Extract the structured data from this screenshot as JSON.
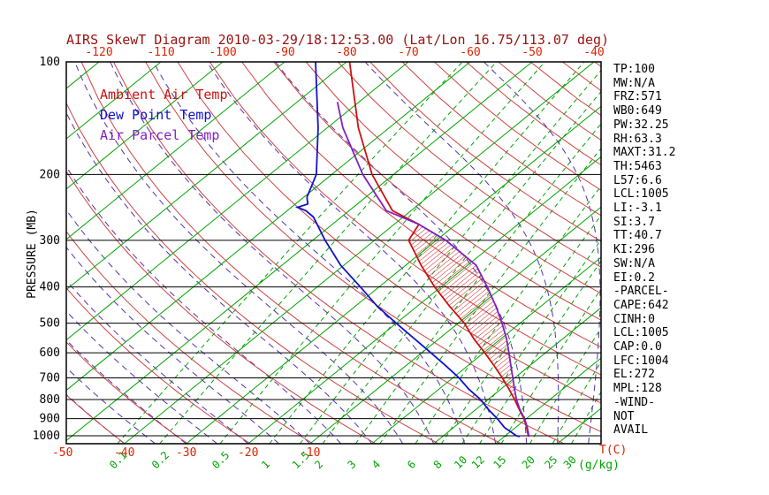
{
  "title": "AIRS SkewT Diagram 2010-03-29/18:12:53.00 (Lat/Lon 16.75/113.07 deg)",
  "legend": {
    "ambient": "Ambient Air Temp",
    "dew": "Dew Point Temp",
    "parcel": "Air Parcel Temp"
  },
  "axes": {
    "pressure_label": "PRESSURE (MB)",
    "temp_label": "T(C)",
    "mixing_label": "(g/kg)",
    "pressure_ticks": [
      100,
      200,
      300,
      400,
      500,
      600,
      700,
      800,
      900,
      1000
    ]
  },
  "stats_panel": [
    "TP:100",
    "MW:N/A",
    "FRZ:571",
    "WB0:649",
    "PW:32.25",
    "RH:63.3",
    "MAXT:31.2",
    "TH:5463",
    "L57:6.6",
    "LCL:1005",
    "LI:-3.1",
    "SI:3.7",
    "TT:40.7",
    "KI:296",
    "SW:N/A",
    "EI:0.2",
    "-PARCEL-",
    "CAPE:642",
    "CINH:0",
    "LCL:1005",
    "CAP:0.0",
    "LFC:1004",
    "EL:272",
    "MPL:128",
    "-WIND-",
    "NOT",
    "AVAIL"
  ],
  "colors": {
    "background": "#ffffff",
    "title": "#991111",
    "axis_red": "#dd2200",
    "axis_green": "#00a400",
    "isotherm": "#00a400",
    "mixing": "#00a400",
    "dry_adiabat": "#cc4444",
    "moist_adiabat": "#5533aa",
    "pressure_line": "#000000",
    "ambient": "#cc1111",
    "dew": "#1111cc",
    "parcel": "#8020c0",
    "hatch": "#cc2222",
    "text": "#000000"
  },
  "chart_data": {
    "type": "line",
    "title": "AIRS SkewT Diagram 2010-03-29/18:12:53.00 (Lat/Lon 16.75/113.07 deg)",
    "xlabel": "T(C)",
    "ylabel": "PRESSURE (MB)",
    "y_scale": "log",
    "ylim": [
      1050,
      100
    ],
    "x_top_labels_c": [
      -120,
      -110,
      -100,
      -90,
      -80,
      -70,
      -60,
      -50,
      -40
    ],
    "x_bottom_labels_c": [
      -50,
      -40,
      -30,
      -20,
      -10
    ],
    "mixing_ratio_lines_g_per_kg": [
      0.1,
      0.2,
      0.5,
      1,
      1.5,
      2,
      3,
      4,
      6,
      8,
      10,
      12,
      15,
      20,
      25,
      30
    ],
    "isotherms_c": {
      "min": -120,
      "max": 40,
      "step": 10
    },
    "dry_adiabats_theta_k": {
      "min": 220,
      "max": 460,
      "step": 10
    },
    "moist_adiabats_start_c": {
      "min": -40,
      "max": 40,
      "step": 5
    },
    "cape_hatch": "between parcel and ambient curves from 1005 mb up to EL 272 mb",
    "series": [
      {
        "key": "ambient",
        "name": "Ambient Air Temp",
        "color": "#cc1111",
        "points_p_t": [
          [
            1005,
            24.0
          ],
          [
            1000,
            23.7
          ],
          [
            950,
            21.8
          ],
          [
            900,
            19.6
          ],
          [
            850,
            17.0
          ],
          [
            800,
            14.3
          ],
          [
            750,
            11.3
          ],
          [
            700,
            8.0
          ],
          [
            650,
            4.3
          ],
          [
            600,
            0.2
          ],
          [
            550,
            -4.4
          ],
          [
            500,
            -9.0
          ],
          [
            450,
            -14.8
          ],
          [
            400,
            -21.0
          ],
          [
            350,
            -27.5
          ],
          [
            300,
            -34.5
          ],
          [
            272,
            -36.0
          ],
          [
            250,
            -43.0
          ],
          [
            200,
            -53.5
          ],
          [
            150,
            -65.0
          ],
          [
            100,
            -79.5
          ]
        ]
      },
      {
        "key": "dew",
        "name": "Dew Point Temp",
        "color": "#1111cc",
        "points_p_t": [
          [
            1005,
            22.5
          ],
          [
            1000,
            21.8
          ],
          [
            950,
            18.2
          ],
          [
            900,
            15.3
          ],
          [
            850,
            12.0
          ],
          [
            800,
            8.8
          ],
          [
            750,
            4.8
          ],
          [
            700,
            1.0
          ],
          [
            650,
            -3.5
          ],
          [
            600,
            -8.5
          ],
          [
            550,
            -14.0
          ],
          [
            500,
            -20.0
          ],
          [
            450,
            -26.5
          ],
          [
            400,
            -33.0
          ],
          [
            350,
            -40.5
          ],
          [
            300,
            -48.0
          ],
          [
            260,
            -54.5
          ],
          [
            250,
            -57.0
          ],
          [
            245,
            -59.0
          ],
          [
            240,
            -58.0
          ],
          [
            230,
            -59.5
          ],
          [
            200,
            -62.5
          ],
          [
            150,
            -71.5
          ],
          [
            100,
            -85.0
          ]
        ]
      },
      {
        "key": "parcel",
        "name": "Air Parcel Temp",
        "color": "#8020c0",
        "points_p_t": [
          [
            1005,
            24.0
          ],
          [
            1000,
            23.8
          ],
          [
            950,
            21.9
          ],
          [
            900,
            19.7
          ],
          [
            850,
            17.1
          ],
          [
            800,
            14.6
          ],
          [
            750,
            12.2
          ],
          [
            700,
            9.7
          ],
          [
            650,
            7.0
          ],
          [
            600,
            4.1
          ],
          [
            550,
            0.9
          ],
          [
            500,
            -2.9
          ],
          [
            450,
            -7.3
          ],
          [
            400,
            -12.5
          ],
          [
            350,
            -18.6
          ],
          [
            300,
            -28.5
          ],
          [
            272,
            -36.0
          ],
          [
            250,
            -44.0
          ],
          [
            200,
            -55.0
          ],
          [
            150,
            -67.5
          ],
          [
            128,
            -73.5
          ]
        ]
      }
    ]
  }
}
